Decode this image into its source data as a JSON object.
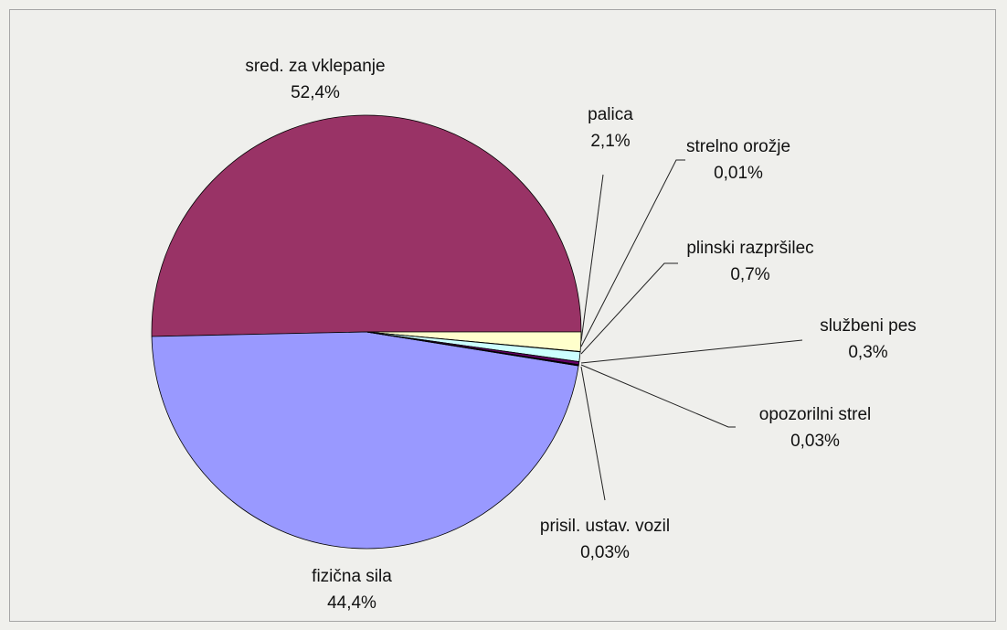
{
  "chart_data": {
    "type": "pie",
    "slices": [
      {
        "label": "sred. za vklepanje",
        "value": 52.4,
        "value_label": "52,4%",
        "color": "#993366"
      },
      {
        "label": "fizična sila",
        "value": 44.4,
        "value_label": "44,4%",
        "color": "#9999ff"
      },
      {
        "label": "palica",
        "value": 2.1,
        "value_label": "2,1%",
        "color": "#ffffcc"
      },
      {
        "label": "strelno orožje",
        "value": 0.01,
        "value_label": "0,01%",
        "color": "#ccffff"
      },
      {
        "label": "plinski razpršilec",
        "value": 0.7,
        "value_label": "0,7%",
        "color": "#ccffff"
      },
      {
        "label": "službeni pes",
        "value": 0.3,
        "value_label": "0,3%",
        "color": "#660066"
      },
      {
        "label": "opozorilni strel",
        "value": 0.03,
        "value_label": "0,03%",
        "color": "#ff8080"
      },
      {
        "label": "prisil. ustav. vozil",
        "value": 0.03,
        "value_label": "0,03%",
        "color": "#0066cc"
      }
    ],
    "legend": "none"
  }
}
